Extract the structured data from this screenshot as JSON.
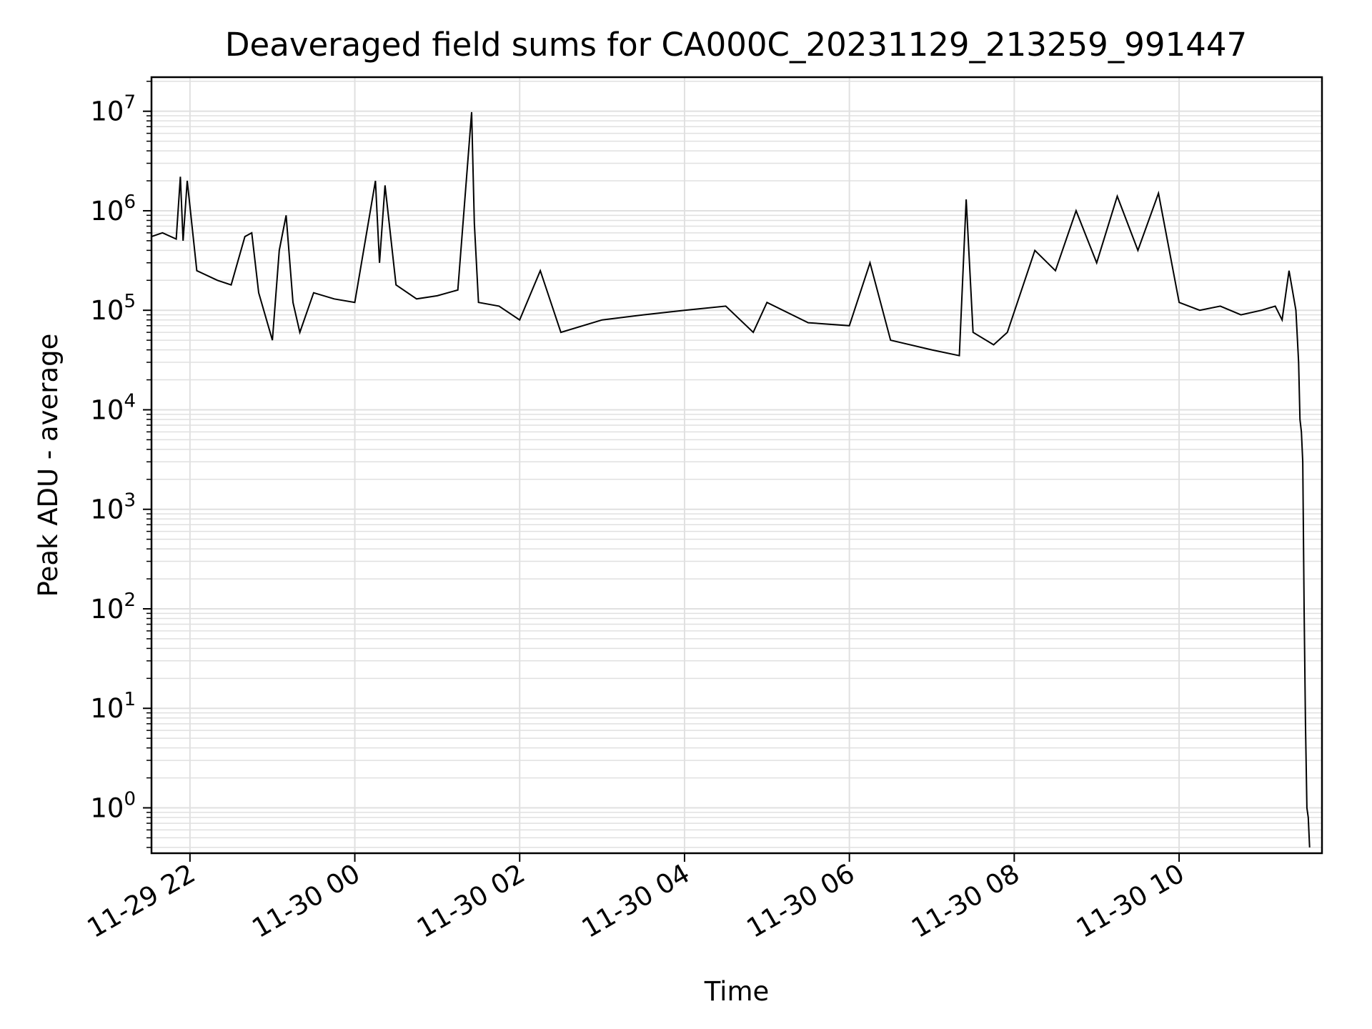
{
  "chart_data": {
    "type": "line",
    "title": "Deaveraged field sums for CA000C_20231129_213259_991447",
    "xlabel": "Time",
    "ylabel": "Peak ADU - average",
    "yscale": "log",
    "ylim": [
      0.35,
      22000000
    ],
    "xlim": [
      "2023-11-29 21:32",
      "2023-11-30 11:44"
    ],
    "grid": true,
    "x_ticks": [
      {
        "value": "2023-11-29 22:00",
        "label": "11-29 22"
      },
      {
        "value": "2023-11-30 00:00",
        "label": "11-30 00"
      },
      {
        "value": "2023-11-30 02:00",
        "label": "11-30 02"
      },
      {
        "value": "2023-11-30 04:00",
        "label": "11-30 04"
      },
      {
        "value": "2023-11-30 06:00",
        "label": "11-30 06"
      },
      {
        "value": "2023-11-30 08:00",
        "label": "11-30 08"
      },
      {
        "value": "2023-11-30 10:00",
        "label": "11-30 10"
      }
    ],
    "y_ticks": [
      {
        "value": 1,
        "base": "10",
        "exp": "0"
      },
      {
        "value": 10,
        "base": "10",
        "exp": "1"
      },
      {
        "value": 100,
        "base": "10",
        "exp": "2"
      },
      {
        "value": 1000,
        "base": "10",
        "exp": "3"
      },
      {
        "value": 10000,
        "base": "10",
        "exp": "4"
      },
      {
        "value": 100000,
        "base": "10",
        "exp": "5"
      },
      {
        "value": 1000000,
        "base": "10",
        "exp": "6"
      },
      {
        "value": 10000000,
        "base": "10",
        "exp": "7"
      }
    ],
    "series": [
      {
        "color": "#000000",
        "x": [
          "2023-11-29 21:32",
          "2023-11-29 21:40",
          "2023-11-29 21:50",
          "2023-11-29 21:53",
          "2023-11-29 21:55",
          "2023-11-29 21:58",
          "2023-11-29 22:05",
          "2023-11-29 22:20",
          "2023-11-29 22:30",
          "2023-11-29 22:40",
          "2023-11-29 22:45",
          "2023-11-29 22:50",
          "2023-11-29 23:00",
          "2023-11-29 23:05",
          "2023-11-29 23:10",
          "2023-11-29 23:15",
          "2023-11-29 23:20",
          "2023-11-29 23:30",
          "2023-11-29 23:45",
          "2023-11-30 00:00",
          "2023-11-30 00:15",
          "2023-11-30 00:18",
          "2023-11-30 00:22",
          "2023-11-30 00:30",
          "2023-11-30 00:45",
          "2023-11-30 01:00",
          "2023-11-30 01:15",
          "2023-11-30 01:25",
          "2023-11-30 01:27",
          "2023-11-30 01:30",
          "2023-11-30 01:45",
          "2023-11-30 02:00",
          "2023-11-30 02:15",
          "2023-11-30 02:30",
          "2023-11-30 03:00",
          "2023-11-30 03:30",
          "2023-11-30 04:00",
          "2023-11-30 04:30",
          "2023-11-30 04:50",
          "2023-11-30 05:00",
          "2023-11-30 05:30",
          "2023-11-30 06:00",
          "2023-11-30 06:15",
          "2023-11-30 06:30",
          "2023-11-30 07:00",
          "2023-11-30 07:20",
          "2023-11-30 07:25",
          "2023-11-30 07:30",
          "2023-11-30 07:45",
          "2023-11-30 07:55",
          "2023-11-30 08:15",
          "2023-11-30 08:30",
          "2023-11-30 08:45",
          "2023-11-30 09:00",
          "2023-11-30 09:15",
          "2023-11-30 09:30",
          "2023-11-30 09:45",
          "2023-11-30 10:00",
          "2023-11-30 10:15",
          "2023-11-30 10:30",
          "2023-11-30 10:45",
          "2023-11-30 11:00",
          "2023-11-30 11:10",
          "2023-11-30 11:15",
          "2023-11-30 11:20",
          "2023-11-30 11:25",
          "2023-11-30 11:27",
          "2023-11-30 11:28",
          "2023-11-30 11:29",
          "2023-11-30 11:30",
          "2023-11-30 11:31",
          "2023-11-30 11:32",
          "2023-11-30 11:33",
          "2023-11-30 11:34",
          "2023-11-30 11:35"
        ],
        "y": [
          550000,
          600000,
          520000,
          2200000,
          500000,
          2000000,
          250000,
          200000,
          180000,
          550000,
          600000,
          150000,
          50000,
          400000,
          900000,
          120000,
          60000,
          150000,
          130000,
          120000,
          2000000,
          300000,
          1800000,
          180000,
          130000,
          140000,
          160000,
          9800000,
          750000,
          120000,
          110000,
          80000,
          250000,
          60000,
          80000,
          90000,
          100000,
          110000,
          60000,
          120000,
          75000,
          70000,
          300000,
          50000,
          40000,
          35000,
          1300000,
          60000,
          45000,
          60000,
          400000,
          250000,
          1000000,
          300000,
          1400000,
          400000,
          1500000,
          120000,
          100000,
          110000,
          90000,
          100000,
          110000,
          80000,
          250000,
          100000,
          30000,
          8000,
          6000,
          3000,
          100,
          7,
          1,
          0.8,
          0.4
        ]
      }
    ]
  }
}
